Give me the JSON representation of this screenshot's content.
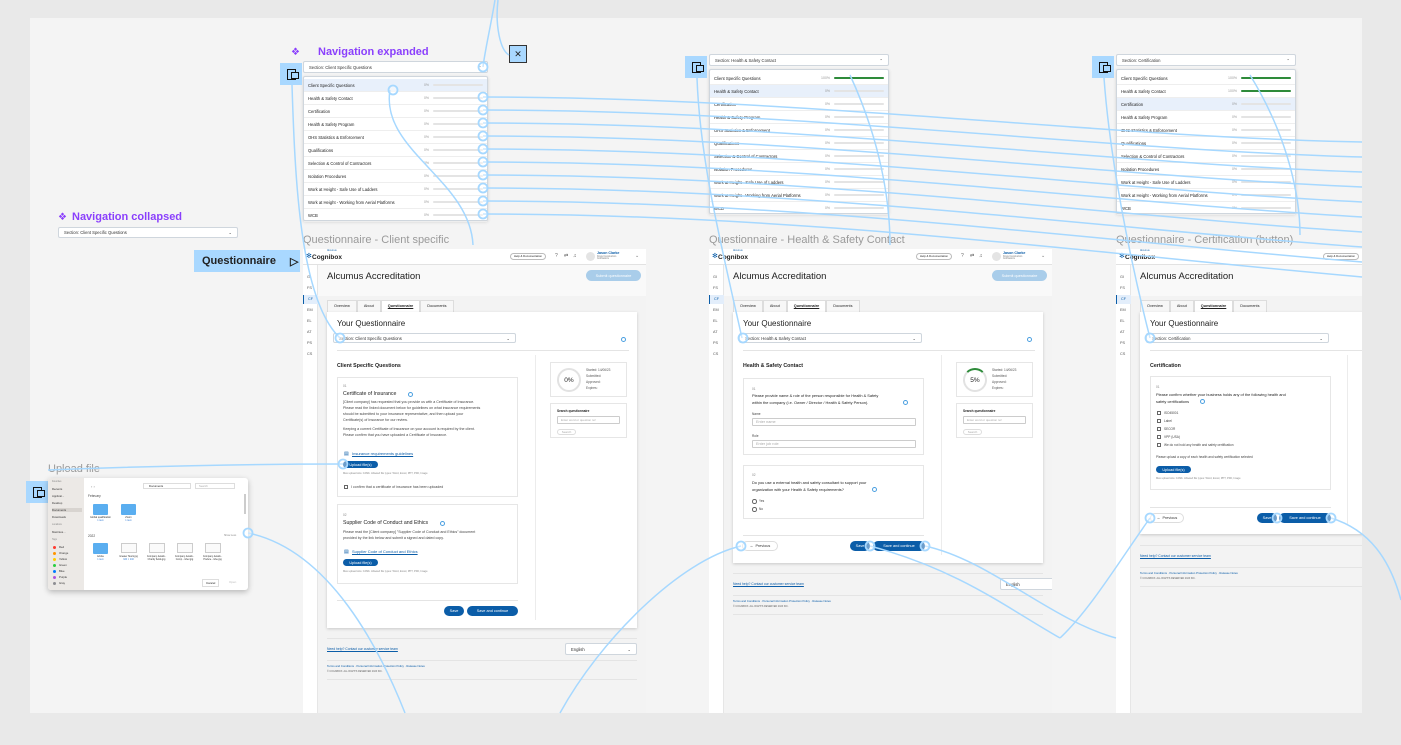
{
  "colors": {
    "accent": "#8a3ffc",
    "connector": "#a6d8ff",
    "brand": "#0b5da8",
    "progress": "#2e8b3a"
  },
  "nav_expanded": {
    "label": "Navigation expanded",
    "select": "Section: Client Specific Questions",
    "items": [
      {
        "label": "Client Specific Questions",
        "pct": "0%",
        "progress": 0
      },
      {
        "label": "Health & Safety Contact",
        "pct": "0%",
        "progress": 0
      },
      {
        "label": "Certification",
        "pct": "0%",
        "progress": 0
      },
      {
        "label": "Health & Safety Program",
        "pct": "0%",
        "progress": 0
      },
      {
        "label": "OHS Statistics & Enforcement",
        "pct": "0%",
        "progress": 0
      },
      {
        "label": "Qualifications",
        "pct": "0%",
        "progress": 0
      },
      {
        "label": "Selection & Control of Contractors",
        "pct": "0%",
        "progress": 0
      },
      {
        "label": "Isolation Procedures",
        "pct": "0%",
        "progress": 0
      },
      {
        "label": "Work at Height - Safe Use of Ladders",
        "pct": "0%",
        "progress": 0
      },
      {
        "label": "Work at Height - Working from Aerial Platforms",
        "pct": "0%",
        "progress": 0
      },
      {
        "label": "WCB",
        "pct": "0%",
        "progress": 0
      }
    ]
  },
  "nav_collapsed": {
    "label": "Navigation collapsed",
    "select": "Section: Client Specific Questions"
  },
  "nav_hs": {
    "select": "Section: Health & Safety Contact",
    "items": [
      {
        "label": "Client Specific Questions",
        "pct": "100%",
        "progress": 100
      },
      {
        "label": "Health & Safety Contact",
        "pct": "0%",
        "progress": 0
      },
      {
        "label": "Certification",
        "pct": "0%",
        "progress": 0
      },
      {
        "label": "Health & Safety Program",
        "pct": "0%",
        "progress": 0
      },
      {
        "label": "OHS Statistics & Enforcement",
        "pct": "0%",
        "progress": 0
      },
      {
        "label": "Qualifications",
        "pct": "0%",
        "progress": 0
      },
      {
        "label": "Selection & Control of Contractors",
        "pct": "0%",
        "progress": 0
      },
      {
        "label": "Isolation Procedures",
        "pct": "0%",
        "progress": 0
      },
      {
        "label": "Work at Height - Safe Use of Ladders",
        "pct": "0%",
        "progress": 0
      },
      {
        "label": "Work at Height - Working from Aerial Platforms",
        "pct": "0%",
        "progress": 0
      },
      {
        "label": "WCB",
        "pct": "0%",
        "progress": 0
      }
    ]
  },
  "nav_cert": {
    "select": "Section: Certification",
    "items": [
      {
        "label": "Client Specific Questions",
        "pct": "100%",
        "progress": 100
      },
      {
        "label": "Health & Safety Contact",
        "pct": "100%",
        "progress": 100
      },
      {
        "label": "Certification",
        "pct": "0%",
        "progress": 0
      },
      {
        "label": "Health & Safety Program",
        "pct": "0%",
        "progress": 0
      },
      {
        "label": "OHS Statistics & Enforcement",
        "pct": "0%",
        "progress": 0
      },
      {
        "label": "Qualifications",
        "pct": "0%",
        "progress": 0
      },
      {
        "label": "Selection & Control of Contractors",
        "pct": "0%",
        "progress": 0
      },
      {
        "label": "Isolation Procedures",
        "pct": "0%",
        "progress": 0
      },
      {
        "label": "Work at Height - Safe Use of Ladders",
        "pct": "0%",
        "progress": 0
      },
      {
        "label": "Work at Height - Working from Aerial Platforms",
        "pct": "0%",
        "progress": 0
      },
      {
        "label": "WCB",
        "pct": "0%",
        "progress": 0
      }
    ]
  },
  "flow_label": "Questionnaire",
  "common": {
    "brand_small": "Alcumus",
    "logo": "Cognibox",
    "help": "Help & Documentation",
    "user_name": "Jason Clarke",
    "user_org": "Kings Construction Contractors",
    "rail": [
      "GI",
      "FS",
      "CF",
      "EM",
      "EL",
      "AT",
      "PS",
      "CS"
    ],
    "page_title": "Alcumus Accreditation",
    "submit": "Submit questionnaire",
    "tabs": [
      "Overview",
      "About",
      "Questionnaire",
      "Documents"
    ],
    "your_q": "Your Questionnaire",
    "started": "Started: 14/06/23",
    "submitted": "Submitted:",
    "approved": "Approved:",
    "expires": "Expires:",
    "search_title": "Search questionnaire",
    "search_placeholder": "Enter word or question ref",
    "search_btn": "Search",
    "upload_btn": "Upload file(s)",
    "max_upload": "Max upload size: 10Mb. Allowed file types: Word, Excel, PPT, PDF, Image",
    "previous": "Previous",
    "save": "Save",
    "save_continue": "Save and continue",
    "need_help": "Need help? Contact our customer service team",
    "language": "English",
    "footer_links": "Terms and Conditions  ·  Personal Information Protection Policy  ·  Release Notes",
    "copyright": "© COGNIBOX. ALL RIGHTS RESERVED 2023 INC."
  },
  "screens": [
    {
      "frame_title": "Questionnaire - Client specific",
      "select": "Section: Client Specific Questions",
      "section_title": "Client Specific Questions",
      "pct": "0%",
      "progress": 0,
      "q1": {
        "num": "01",
        "title": "Certificate of Insurance",
        "para1": [
          "[Client company] has requested that you provide us with a Certificate of Insurance.",
          "Please read the linked document below for guidelines on what insurance requirements",
          "should be submitted to your insurance representative, and then upload your",
          "Certificate(s) of Insurance for our review."
        ],
        "para2": [
          "Keeping a current Certificate of Insurance on your account is required by the client.",
          "Please confirm that you have uploaded a Certificate of Insurance."
        ],
        "link": "Insurance requirements guidelines",
        "confirm": "I confirm that a certificate of insurance has been uploaded"
      },
      "q2": {
        "num": "02",
        "title": "Supplier Code of Conduct and Ethics",
        "para": [
          "Please read the [Client company] \"Supplier Code of Conduct and Ethics\" document",
          "provided by the link below and submit a signed and dated copy."
        ],
        "link": "Supplier Code of Conduct and Ethics"
      }
    },
    {
      "frame_title": "Questionnaire - Health & Safety Contact",
      "select": "Section: Health & Safety Contact",
      "section_title": "Health & Safety Contact",
      "pct": "5%",
      "progress": 5,
      "q1": {
        "num": "01",
        "text": [
          "Please provide name & role of the person responsible for Health & Safety",
          "within the company (i.e. Owner / Director / Health & Safety Person)."
        ],
        "name_label": "Name",
        "name_placeholder": "Enter name",
        "role_label": "Role",
        "role_placeholder": "Enter job role"
      },
      "q2": {
        "num": "02",
        "text": [
          "Do you use a external health and safety consultant to support your",
          "organization with your Health & Safety requirements?"
        ],
        "options": [
          "Yes",
          "No"
        ]
      }
    },
    {
      "frame_title": "Questionnaire - Certification (button)",
      "select": "Section: Certification",
      "section_title": "Certification",
      "q1": {
        "num": "01",
        "text": [
          "Please confirm whether your business holds any of the following health and",
          "safety certifications"
        ],
        "options": [
          "ISO45001",
          "Label",
          "SECOR",
          "VPP (USA)",
          "We do not hold any health and safety certification"
        ],
        "upload_note": "Please upload a copy of each health and safety certification selected"
      }
    }
  ],
  "upload": {
    "label": "Upload file",
    "sidebar_favorites": "Favorites",
    "favorites": [
      "Recents",
      "Applicat...",
      "Desktop",
      "Documents",
      "Downloads"
    ],
    "locations_label": "Locations",
    "locations": [
      "Macintos..."
    ],
    "tags_label": "Tags",
    "tags": [
      {
        "label": "Red",
        "color": "#ff3b30"
      },
      {
        "label": "Orange",
        "color": "#ff9500"
      },
      {
        "label": "Yellow",
        "color": "#ffcc00"
      },
      {
        "label": "Green",
        "color": "#28cd41"
      },
      {
        "label": "Blue",
        "color": "#007aff"
      },
      {
        "label": "Purple",
        "color": "#af52de"
      },
      {
        "label": "Gray",
        "color": "#8e8e93"
      }
    ],
    "location": "Documents",
    "search_placeholder": "Search",
    "group1": "February",
    "group2": "2022",
    "show_less": "Show Less",
    "files1": [
      {
        "name": "Global qualification",
        "meta": "1 item"
      },
      {
        "name": "Zoom",
        "meta": "1 item"
      }
    ],
    "files2": [
      {
        "name": "Adobe",
        "meta": "1 item"
      },
      {
        "name": "Greater Stock.jpg",
        "meta": "320 × 240"
      },
      {
        "name": "Company details - Charity fields.jpg",
        "meta": ""
      },
      {
        "name": "Company details - Comp...mber.jpg",
        "meta": ""
      },
      {
        "name": "Company details - Prefere...mbe.jpg",
        "meta": ""
      }
    ],
    "cancel": "Cancel",
    "open": "Open"
  }
}
